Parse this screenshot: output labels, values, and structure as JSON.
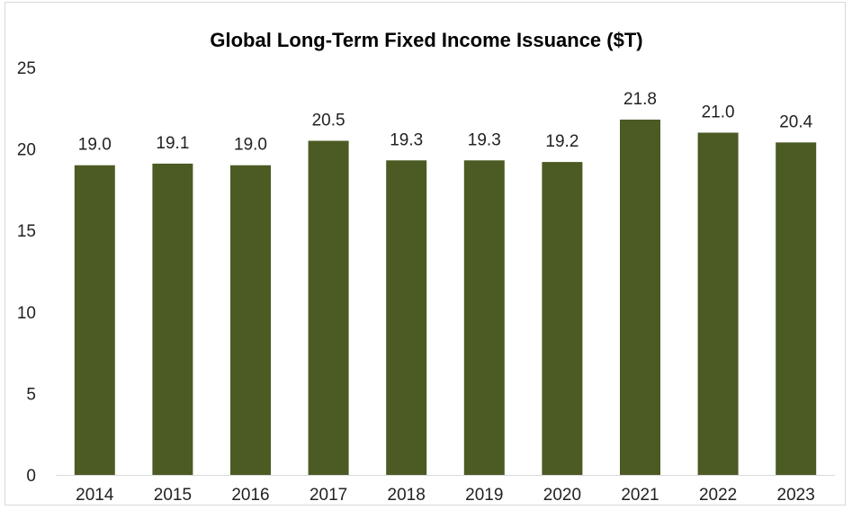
{
  "chart_data": {
    "type": "bar",
    "title": "Global Long-Term Fixed Income Issuance ($T)",
    "xlabel": "",
    "ylabel": "",
    "categories": [
      "2014",
      "2015",
      "2016",
      "2017",
      "2018",
      "2019",
      "2020",
      "2021",
      "2022",
      "2023"
    ],
    "values": [
      19.0,
      19.1,
      19.0,
      20.5,
      19.3,
      19.3,
      19.2,
      21.8,
      21.0,
      20.4
    ],
    "data_labels": [
      "19.0",
      "19.1",
      "19.0",
      "20.5",
      "19.3",
      "19.3",
      "19.2",
      "21.8",
      "21.0",
      "20.4"
    ],
    "ylim": [
      0,
      25
    ],
    "yticks": [
      0,
      5,
      10,
      15,
      20,
      25
    ],
    "grid": false,
    "legend": "none",
    "bar_color": "#4b5b23"
  }
}
